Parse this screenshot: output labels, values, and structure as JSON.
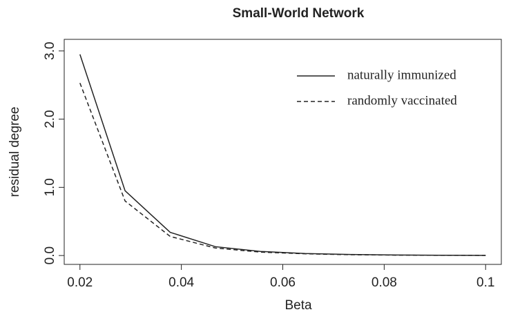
{
  "chart_data": {
    "type": "line",
    "title": "Small-World Network",
    "x_label": "Beta",
    "y_label": "residual degree",
    "x": [
      0.02,
      0.0289,
      0.0378,
      0.0467,
      0.0556,
      0.0644,
      0.0733,
      0.0822,
      0.0911,
      0.1
    ],
    "series": [
      {
        "name": "naturally immunized",
        "color": "#222222",
        "dash": false,
        "values": [
          2.95,
          0.95,
          0.34,
          0.13,
          0.06,
          0.03,
          0.015,
          0.008,
          0.004,
          0.002
        ]
      },
      {
        "name": "randomly vaccinated",
        "color": "#222222",
        "dash": true,
        "values": [
          2.53,
          0.8,
          0.28,
          0.11,
          0.05,
          0.025,
          0.012,
          0.006,
          0.003,
          0.002
        ]
      }
    ],
    "xlim": [
      0.0169,
      0.1031
    ],
    "ylim": [
      -0.13,
      3.17
    ],
    "xticks": [
      0.02,
      0.04,
      0.06,
      0.08,
      0.1
    ],
    "yticks": [
      {
        "value": 0,
        "label": "0.0"
      },
      {
        "value": 1,
        "label": "1.0"
      },
      {
        "value": 2,
        "label": "2.0"
      },
      {
        "value": 3,
        "label": "3.0"
      }
    ],
    "legend": "top-right",
    "grid": false
  }
}
